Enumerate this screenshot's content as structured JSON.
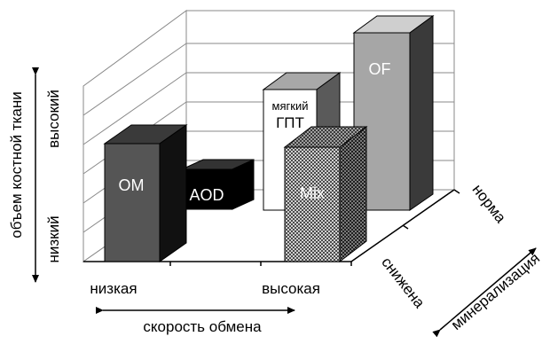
{
  "y_axis": {
    "title": "объем костной ткани",
    "low": "низкий",
    "high": "высокий"
  },
  "x_axis": {
    "low": "низкая",
    "high": "высокая",
    "title": "скорость обмена"
  },
  "z_axis": {
    "title": "минерализация",
    "low": "снижена",
    "high": "норма"
  },
  "bars": [
    {
      "id": "om",
      "label": "ОМ",
      "fill": "#555555",
      "front_text_color": "#ffffff"
    },
    {
      "id": "aod",
      "label": "AOD",
      "fill": "#000000",
      "front_text_color": "#ffffff"
    },
    {
      "id": "gpt",
      "label_line1": "мягкий",
      "label_line2": "ГПТ",
      "fill": "#ffffff",
      "front_text_color": "#000000"
    },
    {
      "id": "of",
      "label": "OF",
      "fill": "#a6a6a6",
      "front_text_color": "#ffffff"
    },
    {
      "id": "mix",
      "label": "Mix",
      "fill": "checker",
      "front_text_color": "#ffffff"
    }
  ],
  "colors": {
    "axis": "#000000",
    "grid": "#8a8a8a",
    "wall": "#ffffff"
  }
}
